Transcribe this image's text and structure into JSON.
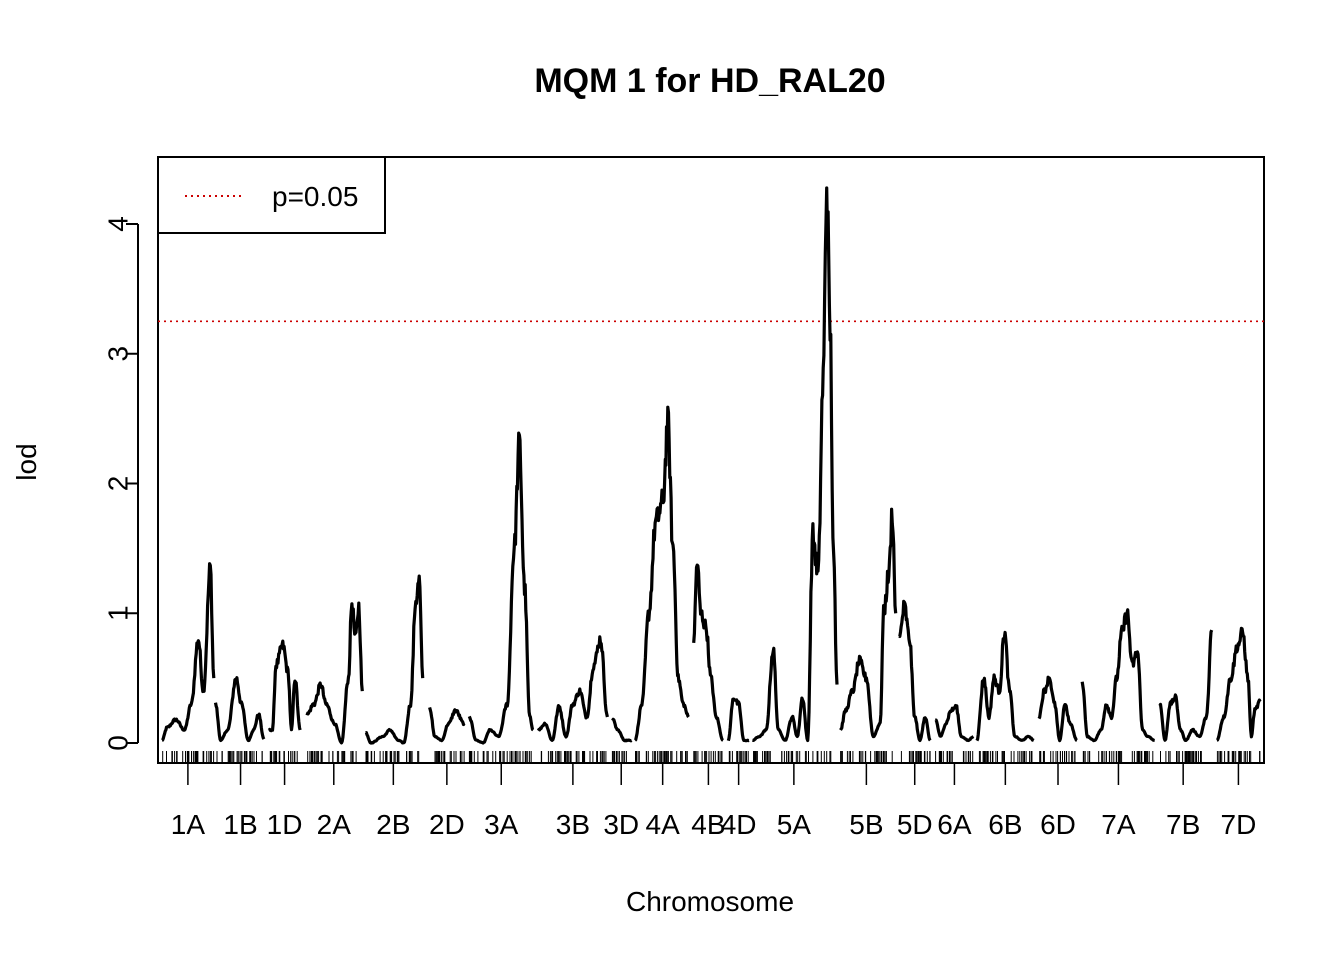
{
  "chart_data": {
    "type": "line",
    "title": "MQM 1 for HD_RAL20",
    "xlabel": "Chromosome",
    "ylabel": "lod",
    "ylim": [
      0,
      4.4
    ],
    "yticks": [
      0,
      1,
      2,
      3,
      4
    ],
    "threshold": {
      "label": "p=0.05",
      "value": 3.25,
      "color": "#cc0000"
    },
    "legend": {
      "position": "top-left",
      "entries": [
        "p=0.05"
      ]
    },
    "line_color": "#000000",
    "chromosomes": [
      {
        "name": "1A",
        "start": 0,
        "end": 30,
        "peaks": [
          [
            0,
            0.02
          ],
          [
            3,
            0.12
          ],
          [
            8,
            0.18
          ],
          [
            13,
            0.1
          ],
          [
            17,
            0.3
          ],
          [
            21,
            0.8
          ],
          [
            24,
            0.4
          ],
          [
            28,
            1.35
          ],
          [
            30,
            0.5
          ]
        ]
      },
      {
        "name": "1B",
        "start": 31,
        "end": 60,
        "peaks": [
          [
            31,
            0.3
          ],
          [
            34,
            0.02
          ],
          [
            38,
            0.1
          ],
          [
            43,
            0.5
          ],
          [
            46,
            0.3
          ],
          [
            50,
            0.02
          ],
          [
            53,
            0.1
          ],
          [
            56,
            0.22
          ],
          [
            59,
            0.03
          ]
        ]
      },
      {
        "name": "1D",
        "start": 62,
        "end": 80,
        "peaks": [
          [
            62,
            0.1
          ],
          [
            64,
            0.1
          ],
          [
            66,
            0.6
          ],
          [
            70,
            0.75
          ],
          [
            73,
            0.55
          ],
          [
            75,
            0.1
          ],
          [
            77,
            0.5
          ],
          [
            80,
            0.1
          ]
        ]
      },
      {
        "name": "2A",
        "start": 84,
        "end": 115,
        "peaks": [
          [
            84,
            0.22
          ],
          [
            88,
            0.3
          ],
          [
            92,
            0.45
          ],
          [
            95,
            0.3
          ],
          [
            100,
            0.15
          ],
          [
            104,
            0.0
          ],
          [
            108,
            0.5
          ],
          [
            110,
            1.08
          ],
          [
            112,
            0.8
          ],
          [
            114,
            1.05
          ],
          [
            116,
            0.4
          ]
        ]
      },
      {
        "name": "2B",
        "start": 118,
        "end": 150,
        "peaks": [
          [
            118,
            0.08
          ],
          [
            121,
            0.0
          ],
          [
            128,
            0.05
          ],
          [
            132,
            0.1
          ],
          [
            137,
            0.02
          ],
          [
            140,
            0.0
          ],
          [
            144,
            0.3
          ],
          [
            147,
            1.1
          ],
          [
            149,
            1.25
          ],
          [
            151,
            0.5
          ]
        ]
      },
      {
        "name": "2D",
        "start": 155,
        "end": 175,
        "peaks": [
          [
            155,
            0.28
          ],
          [
            158,
            0.05
          ],
          [
            162,
            0.02
          ],
          [
            166,
            0.15
          ],
          [
            170,
            0.25
          ],
          [
            175,
            0.15
          ]
        ]
      },
      {
        "name": "3A",
        "start": 178,
        "end": 215,
        "peaks": [
          [
            178,
            0.2
          ],
          [
            182,
            0.02
          ],
          [
            186,
            0.0
          ],
          [
            190,
            0.1
          ],
          [
            195,
            0.05
          ],
          [
            200,
            0.3
          ],
          [
            204,
            1.5
          ],
          [
            207,
            2.3
          ],
          [
            210,
            1.2
          ],
          [
            213,
            0.2
          ],
          [
            215,
            0.1
          ]
        ]
      },
      {
        "name": "3B",
        "start": 218,
        "end": 258,
        "peaks": [
          [
            218,
            0.1
          ],
          [
            222,
            0.15
          ],
          [
            226,
            0.02
          ],
          [
            230,
            0.28
          ],
          [
            234,
            0.05
          ],
          [
            238,
            0.3
          ],
          [
            242,
            0.4
          ],
          [
            246,
            0.2
          ],
          [
            250,
            0.6
          ],
          [
            254,
            0.8
          ],
          [
            258,
            0.2
          ]
        ]
      },
      {
        "name": "3D",
        "start": 260,
        "end": 272,
        "peaks": [
          [
            261,
            0.18
          ],
          [
            264,
            0.1
          ],
          [
            268,
            0.02
          ],
          [
            272,
            0.02
          ]
        ]
      },
      {
        "name": "4A",
        "start": 274,
        "end": 306,
        "peaks": [
          [
            274,
            0.02
          ],
          [
            278,
            0.3
          ],
          [
            282,
            1.0
          ],
          [
            286,
            1.7
          ],
          [
            290,
            1.85
          ],
          [
            293,
            2.45
          ],
          [
            296,
            1.5
          ],
          [
            299,
            0.5
          ],
          [
            302,
            0.3
          ],
          [
            305,
            0.2
          ]
        ]
      },
      {
        "name": "4B",
        "start": 308,
        "end": 325,
        "peaks": [
          [
            308,
            0.8
          ],
          [
            310,
            1.4
          ],
          [
            312,
            1.0
          ],
          [
            315,
            0.9
          ],
          [
            318,
            0.5
          ],
          [
            321,
            0.2
          ],
          [
            325,
            0.02
          ]
        ]
      },
      {
        "name": "4D",
        "start": 328,
        "end": 340,
        "peaks": [
          [
            328,
            0.02
          ],
          [
            331,
            0.35
          ],
          [
            334,
            0.3
          ],
          [
            337,
            0.02
          ],
          [
            340,
            0.02
          ]
        ]
      },
      {
        "name": "5A",
        "start": 342,
        "end": 390,
        "peaks": [
          [
            342,
            0.02
          ],
          [
            346,
            0.05
          ],
          [
            350,
            0.1
          ],
          [
            354,
            0.72
          ],
          [
            357,
            0.1
          ],
          [
            361,
            0.02
          ],
          [
            365,
            0.2
          ],
          [
            368,
            0.05
          ],
          [
            371,
            0.35
          ],
          [
            374,
            0.02
          ],
          [
            377,
            1.6
          ],
          [
            380,
            1.3
          ],
          [
            383,
            2.8
          ],
          [
            385,
            4.3
          ],
          [
            387,
            3.2
          ],
          [
            389,
            1.4
          ],
          [
            391,
            0.45
          ]
        ]
      },
      {
        "name": "5B",
        "start": 393,
        "end": 423,
        "peaks": [
          [
            393,
            0.1
          ],
          [
            396,
            0.25
          ],
          [
            400,
            0.4
          ],
          [
            404,
            0.63
          ],
          [
            408,
            0.5
          ],
          [
            412,
            0.05
          ],
          [
            416,
            0.15
          ],
          [
            418,
            1.0
          ],
          [
            421,
            1.3
          ],
          [
            423,
            1.78
          ],
          [
            425,
            1.0
          ]
        ]
      },
      {
        "name": "5D",
        "start": 427,
        "end": 445,
        "peaks": [
          [
            427,
            0.8
          ],
          [
            430,
            1.05
          ],
          [
            433,
            0.8
          ],
          [
            436,
            0.2
          ],
          [
            439,
            0.02
          ],
          [
            442,
            0.2
          ],
          [
            445,
            0.02
          ]
        ]
      },
      {
        "name": "6A",
        "start": 448,
        "end": 470,
        "peaks": [
          [
            448,
            0.18
          ],
          [
            451,
            0.05
          ],
          [
            454,
            0.15
          ],
          [
            457,
            0.25
          ],
          [
            460,
            0.28
          ],
          [
            463,
            0.05
          ],
          [
            467,
            0.02
          ],
          [
            470,
            0.05
          ]
        ]
      },
      {
        "name": "6B",
        "start": 472,
        "end": 505,
        "peaks": [
          [
            472,
            0.02
          ],
          [
            476,
            0.5
          ],
          [
            479,
            0.2
          ],
          [
            482,
            0.5
          ],
          [
            485,
            0.4
          ],
          [
            488,
            0.85
          ],
          [
            491,
            0.4
          ],
          [
            494,
            0.05
          ],
          [
            498,
            0.02
          ],
          [
            502,
            0.05
          ],
          [
            505,
            0.02
          ]
        ]
      },
      {
        "name": "6D",
        "start": 508,
        "end": 530,
        "peaks": [
          [
            508,
            0.2
          ],
          [
            511,
            0.4
          ],
          [
            514,
            0.5
          ],
          [
            517,
            0.3
          ],
          [
            520,
            0.02
          ],
          [
            523,
            0.3
          ],
          [
            526,
            0.15
          ],
          [
            530,
            0.02
          ]
        ]
      },
      {
        "name": "7A",
        "start": 533,
        "end": 575,
        "peaks": [
          [
            533,
            0.48
          ],
          [
            536,
            0.05
          ],
          [
            540,
            0.02
          ],
          [
            544,
            0.1
          ],
          [
            547,
            0.3
          ],
          [
            550,
            0.2
          ],
          [
            553,
            0.5
          ],
          [
            556,
            0.85
          ],
          [
            559,
            1.0
          ],
          [
            562,
            0.6
          ],
          [
            565,
            0.7
          ],
          [
            568,
            0.1
          ],
          [
            571,
            0.05
          ],
          [
            575,
            0.02
          ]
        ]
      },
      {
        "name": "7B",
        "start": 578,
        "end": 605,
        "peaks": [
          [
            578,
            0.3
          ],
          [
            581,
            0.02
          ],
          [
            584,
            0.3
          ],
          [
            587,
            0.35
          ],
          [
            590,
            0.1
          ],
          [
            593,
            0.02
          ],
          [
            597,
            0.1
          ],
          [
            601,
            0.05
          ],
          [
            605,
            0.2
          ],
          [
            608,
            0.87
          ]
        ]
      },
      {
        "name": "7D",
        "start": 611,
        "end": 636,
        "peaks": [
          [
            611,
            0.02
          ],
          [
            615,
            0.2
          ],
          [
            619,
            0.5
          ],
          [
            623,
            0.75
          ],
          [
            626,
            0.85
          ],
          [
            629,
            0.5
          ],
          [
            631,
            0.05
          ],
          [
            633,
            0.25
          ],
          [
            636,
            0.32
          ]
        ]
      }
    ],
    "x_extent": [
      0,
      636
    ]
  }
}
